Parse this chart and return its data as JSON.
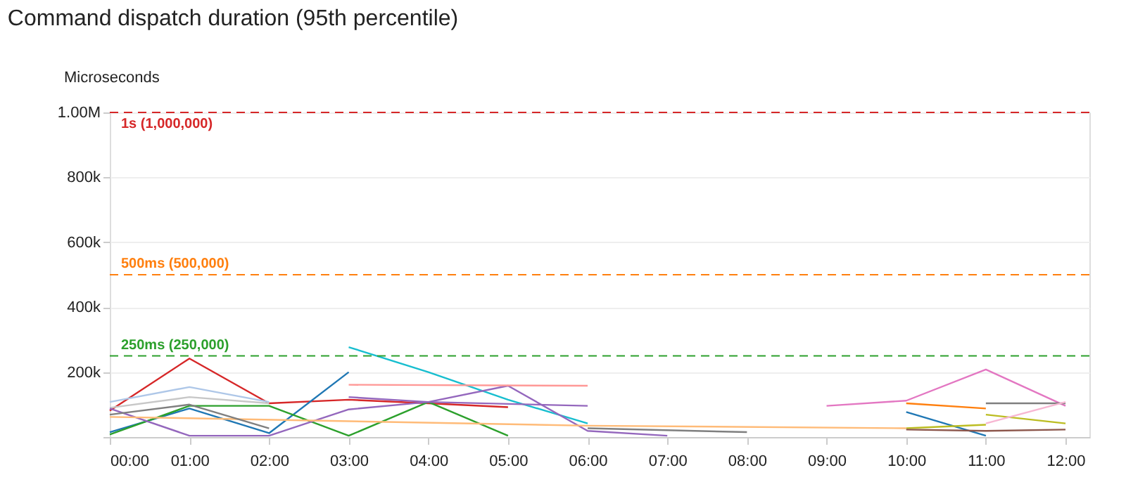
{
  "chart_data": {
    "type": "line",
    "title": "Command dispatch duration (95th percentile)",
    "ylabel": "Microseconds",
    "xlim": [
      0,
      12.3
    ],
    "xticks": [
      {
        "value": 0,
        "label": "00:00"
      },
      {
        "value": 1,
        "label": "01:00"
      },
      {
        "value": 2,
        "label": "02:00"
      },
      {
        "value": 3,
        "label": "03:00"
      },
      {
        "value": 4,
        "label": "04:00"
      },
      {
        "value": 5,
        "label": "05:00"
      },
      {
        "value": 6,
        "label": "06:00"
      },
      {
        "value": 7,
        "label": "07:00"
      },
      {
        "value": 8,
        "label": "08:00"
      },
      {
        "value": 9,
        "label": "09:00"
      },
      {
        "value": 10,
        "label": "10:00"
      },
      {
        "value": 11,
        "label": "11:00"
      },
      {
        "value": 12,
        "label": "12:00"
      }
    ],
    "ylim": [
      0,
      1000000
    ],
    "yticks": [
      {
        "value": 0,
        "label": null
      },
      {
        "value": 200000,
        "label": "200k"
      },
      {
        "value": 400000,
        "label": "400k"
      },
      {
        "value": 600000,
        "label": "600k"
      },
      {
        "value": 800000,
        "label": "800k"
      },
      {
        "value": 1000000,
        "label": "1.00M"
      }
    ],
    "grid": "y",
    "marker": "none",
    "line_style": "solid",
    "series": [
      {
        "color": "#d62728",
        "x": [
          0,
          1,
          2,
          3,
          4,
          5
        ],
        "values": [
          81000,
          242000,
          104000,
          115000,
          104000,
          92000
        ]
      },
      {
        "color": "#aec7e8",
        "x": [
          0,
          1,
          2
        ],
        "values": [
          108000,
          154000,
          108000
        ]
      },
      {
        "color": "#c7c7c7",
        "x": [
          0,
          1,
          2
        ],
        "values": [
          90000,
          123000,
          104000
        ]
      },
      {
        "color": "#1f77b4",
        "x": [
          0,
          1,
          2,
          3
        ],
        "values": [
          15000,
          88000,
          12000,
          200000
        ]
      },
      {
        "color": "#1f77b4",
        "x": [
          10,
          11
        ],
        "values": [
          77000,
          4000
        ]
      },
      {
        "color": "#17becf",
        "x": [
          3,
          4,
          5,
          6
        ],
        "values": [
          277000,
          200000,
          115000,
          42000
        ]
      },
      {
        "color": "#2ca02c",
        "x": [
          0,
          1,
          2,
          3,
          4,
          5
        ],
        "values": [
          8000,
          96000,
          96000,
          4000,
          108000,
          4000
        ]
      },
      {
        "color": "#9467bd",
        "x": [
          0,
          1,
          2,
          3,
          4,
          5,
          6,
          7
        ],
        "values": [
          88000,
          4000,
          4000,
          85000,
          108000,
          158000,
          19000,
          4000
        ]
      },
      {
        "color": "#9467bd",
        "x": [
          3,
          4,
          6
        ],
        "values": [
          123000,
          108000,
          96000
        ]
      },
      {
        "color": "#ff9896",
        "x": [
          3,
          6
        ],
        "values": [
          161000,
          158000
        ]
      },
      {
        "color": "#e377c2",
        "x": [
          9,
          10,
          11,
          12
        ],
        "values": [
          96000,
          112000,
          208000,
          96000
        ]
      },
      {
        "color": "#ff7f0e",
        "x": [
          10,
          11
        ],
        "values": [
          104000,
          88000
        ]
      },
      {
        "color": "#bcbd22",
        "x": [
          11,
          12
        ],
        "values": [
          69000,
          42000
        ]
      },
      {
        "color": "#bcbd22",
        "x": [
          10,
          11
        ],
        "values": [
          27000,
          38000
        ]
      },
      {
        "color": "#7f7f7f",
        "x": [
          11,
          12
        ],
        "values": [
          104000,
          104000
        ]
      },
      {
        "color": "#f7b6d2",
        "x": [
          11,
          12
        ],
        "values": [
          42000,
          108000
        ]
      },
      {
        "color": "#ffbb78",
        "x": [
          0,
          1,
          6,
          10
        ],
        "values": [
          62000,
          58000,
          35000,
          27000
        ]
      },
      {
        "color": "#7f7f7f",
        "x": [
          6,
          8
        ],
        "values": [
          27000,
          15000
        ]
      },
      {
        "color": "#8c564b",
        "x": [
          10,
          11,
          12
        ],
        "values": [
          23000,
          19000,
          23000
        ]
      },
      {
        "color": "#7f7f7f",
        "x": [
          0,
          1,
          2
        ],
        "values": [
          69000,
          100000,
          27000
        ]
      }
    ],
    "ref_lines": [
      {
        "axis": "y",
        "value": 1000000,
        "label": "1s (1,000,000)",
        "color": "#d62728",
        "line_style": "dashed"
      },
      {
        "axis": "y",
        "value": 500000,
        "label": "500ms (500,000)",
        "color": "#ff7f0e",
        "line_style": "dashed"
      },
      {
        "axis": "y",
        "value": 250000,
        "label": "250ms (250,000)",
        "color": "#2ca02c",
        "line_style": "dashed"
      }
    ]
  }
}
